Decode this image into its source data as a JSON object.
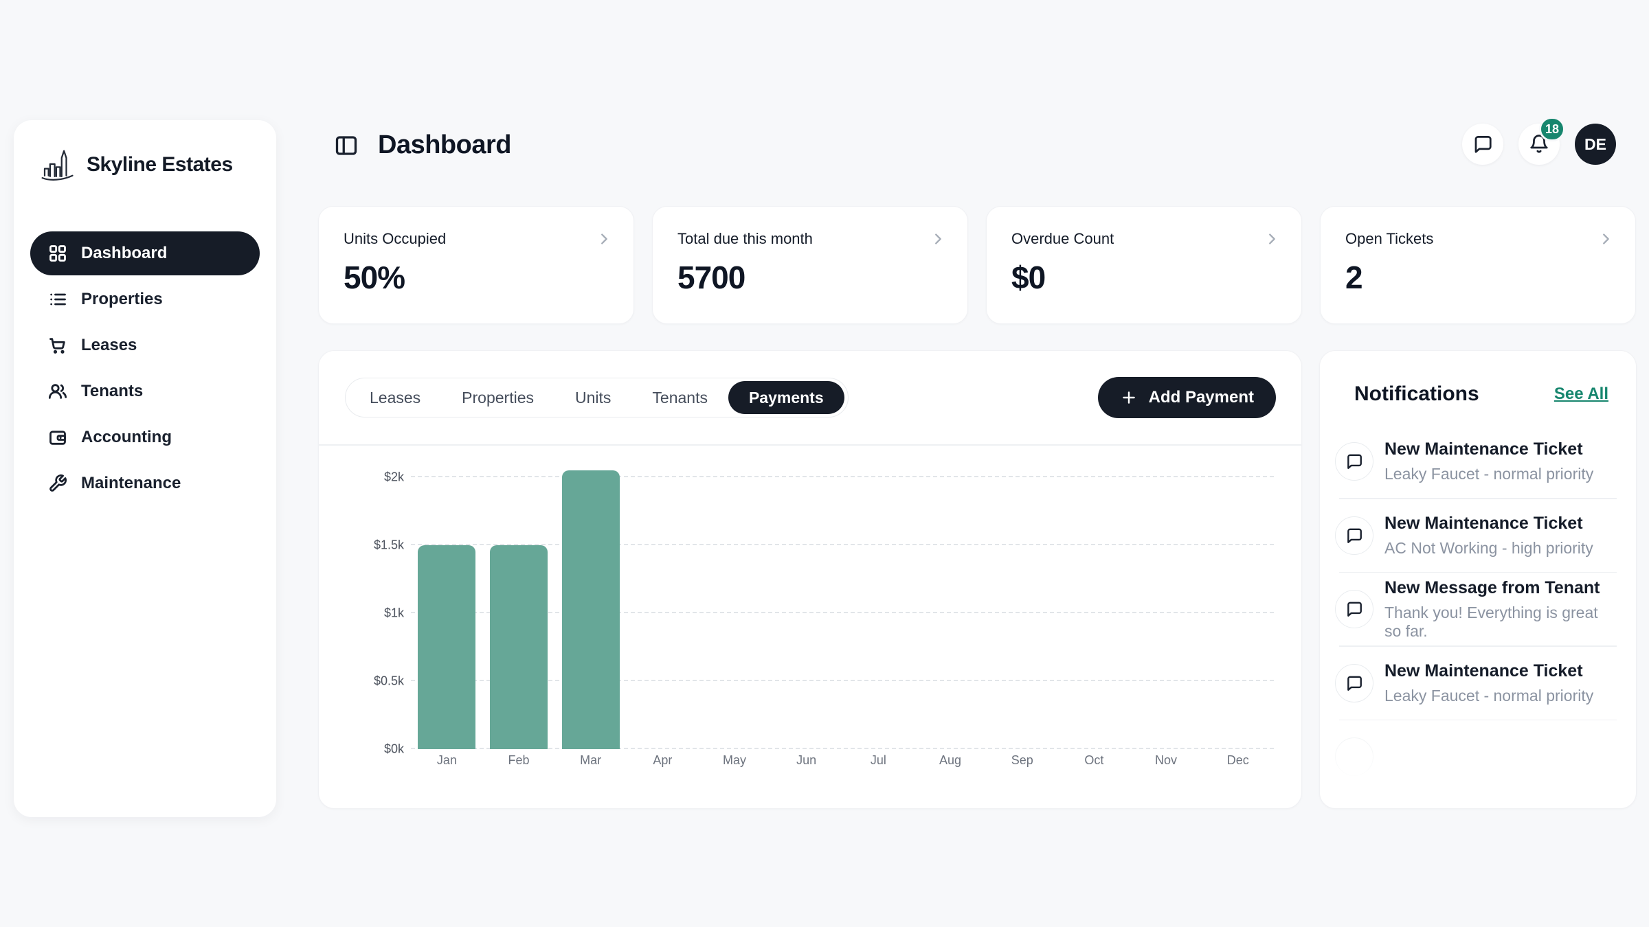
{
  "colors": {
    "dark": "#161c27",
    "accent": "#17866e",
    "bar": "#66a797",
    "page_bg": "#f7f8fa",
    "card_border": "#f0f1f4",
    "text": "#101725",
    "muted": "#8b93a1",
    "divider": "#eef0f3"
  },
  "sidebar": {
    "brand": "Skyline Estates",
    "items": [
      {
        "label": "Dashboard",
        "icon": "grid",
        "active": true
      },
      {
        "label": "Properties",
        "icon": "list",
        "active": false
      },
      {
        "label": "Leases",
        "icon": "cart",
        "active": false
      },
      {
        "label": "Tenants",
        "icon": "users",
        "active": false
      },
      {
        "label": "Accounting",
        "icon": "wallet",
        "active": false
      },
      {
        "label": "Maintenance",
        "icon": "wrench",
        "active": false
      }
    ]
  },
  "header": {
    "title": "Dashboard",
    "notification_count": "18",
    "avatar_initials": "DE"
  },
  "stats": [
    {
      "label": "Units Occupied",
      "value": "50%"
    },
    {
      "label": "Total due this month",
      "value": "5700"
    },
    {
      "label": "Overdue Count",
      "value": "$0"
    },
    {
      "label": "Open Tickets",
      "value": "2"
    }
  ],
  "tabs": [
    {
      "label": "Leases",
      "active": false
    },
    {
      "label": "Properties",
      "active": false
    },
    {
      "label": "Units",
      "active": false
    },
    {
      "label": "Tenants",
      "active": false
    },
    {
      "label": "Payments",
      "active": true
    }
  ],
  "actions": {
    "add_payment": "Add Payment"
  },
  "chart_data": {
    "type": "bar",
    "title": "",
    "xlabel": "",
    "ylabel": "",
    "categories": [
      "Jan",
      "Feb",
      "Mar",
      "Apr",
      "May",
      "Jun",
      "Jul",
      "Aug",
      "Sep",
      "Oct",
      "Nov",
      "Dec"
    ],
    "values": [
      1500,
      1500,
      2050,
      0,
      0,
      0,
      0,
      0,
      0,
      0,
      0,
      0
    ],
    "y_ticks": [
      "$0k",
      "$0.5k",
      "$1k",
      "$1.5k",
      "$2k"
    ],
    "y_tick_values": [
      0,
      500,
      1000,
      1500,
      2000
    ],
    "ylim": [
      0,
      2150
    ],
    "grid": "horizontal-dashed",
    "legend": "none",
    "bar_color": "#66a797"
  },
  "notifications": {
    "title": "Notifications",
    "see_all": "See All",
    "items": [
      {
        "title": "New Maintenance Ticket",
        "subtitle": "Leaky Faucet - normal priority"
      },
      {
        "title": "New Maintenance Ticket",
        "subtitle": "AC Not Working - high priority"
      },
      {
        "title": "New Message from Tenant",
        "subtitle": "Thank you! Everything is great so far."
      },
      {
        "title": "New Maintenance Ticket",
        "subtitle": "Leaky Faucet - normal priority"
      }
    ]
  }
}
